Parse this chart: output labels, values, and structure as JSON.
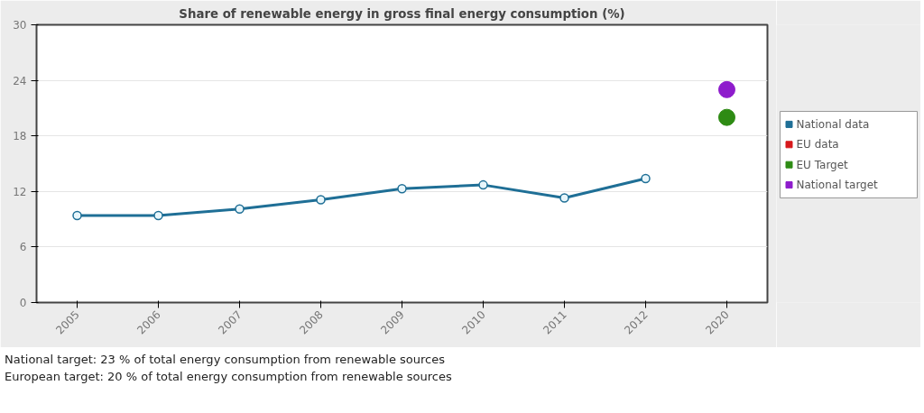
{
  "chart_data": {
    "type": "line",
    "title": "Share of renewable energy in gross final energy consumption (%)",
    "categories": [
      "2005",
      "2006",
      "2007",
      "2008",
      "2009",
      "2010",
      "2011",
      "2012",
      "2020"
    ],
    "series": [
      {
        "name": "National data",
        "color": "#1f6f96",
        "values": [
          9.4,
          9.4,
          10.1,
          11.1,
          12.3,
          12.7,
          11.3,
          13.4,
          null
        ]
      },
      {
        "name": "EU data",
        "color": "#d7191c",
        "type": "scatter",
        "values": [
          null,
          null,
          null,
          null,
          null,
          null,
          null,
          null,
          null
        ]
      },
      {
        "name": "EU Target",
        "color": "#2e8b14",
        "type": "scatter",
        "values": [
          null,
          null,
          null,
          null,
          null,
          null,
          null,
          null,
          20
        ]
      },
      {
        "name": "National target",
        "color": "#8e1ccc",
        "type": "scatter",
        "values": [
          null,
          null,
          null,
          null,
          null,
          null,
          null,
          null,
          23
        ]
      }
    ],
    "ylim": [
      0,
      30
    ],
    "yticks": [
      0,
      6,
      12,
      18,
      24,
      30
    ],
    "grid": "y",
    "legend": "right",
    "marker": "circle",
    "annotations": [
      "National target: 23 % of total energy consumption from renewable sources",
      "European target: 20 % of total energy consumption from renewable sources"
    ]
  }
}
